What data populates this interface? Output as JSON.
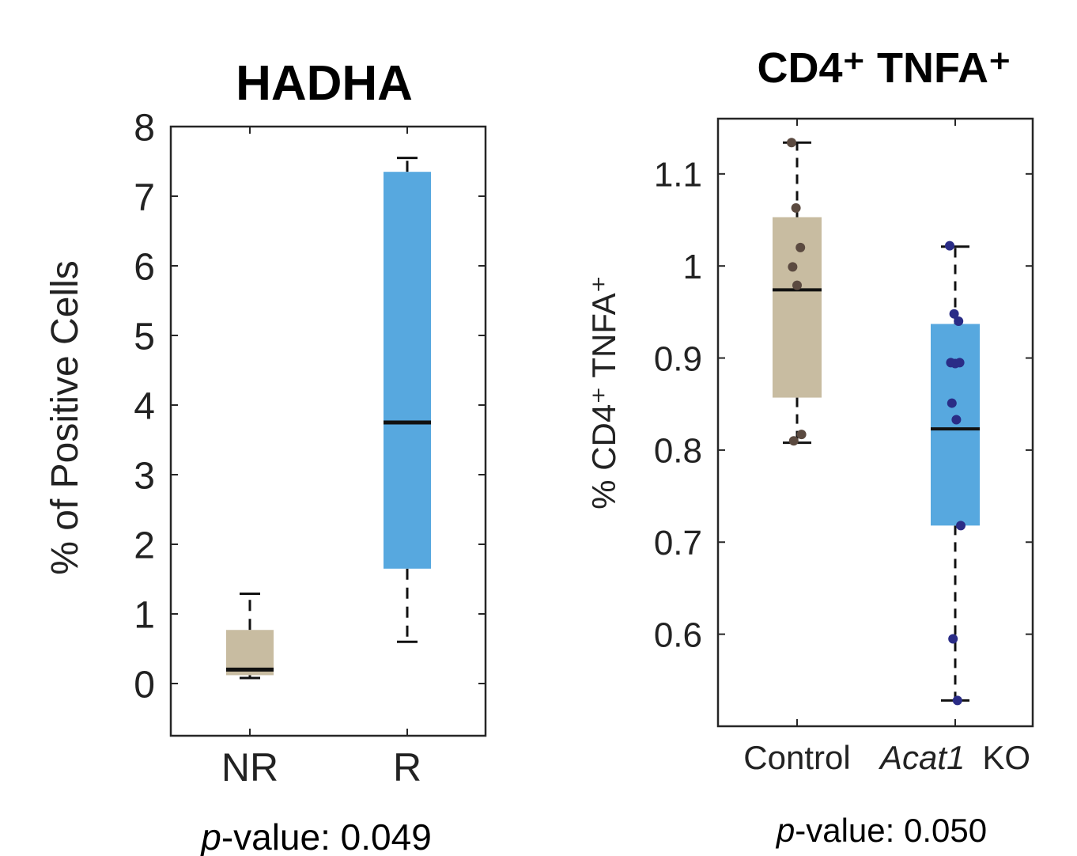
{
  "chart_data": [
    {
      "type": "box",
      "title": "HADHA",
      "ylabel": "% of Positive Cells",
      "ylim": [
        -0.75,
        8
      ],
      "yticks": [
        "0",
        "1",
        "2",
        "3",
        "4",
        "5",
        "6",
        "7",
        "8"
      ],
      "categories": [
        "NR",
        "R"
      ],
      "boxes": [
        {
          "category": "NR",
          "whisker_low": 0.08,
          "q1": 0.12,
          "median": 0.2,
          "q3": 0.77,
          "whisker_high": 1.29,
          "color": "#c8bca1"
        },
        {
          "category": "R",
          "whisker_low": 0.6,
          "q1": 1.65,
          "median": 3.75,
          "q3": 7.35,
          "whisker_high": 7.55,
          "color": "#57a8df"
        }
      ],
      "pvalue_label": "-value: 0.049",
      "pvalue_prefix": "p"
    },
    {
      "type": "box",
      "title": "CD4⁺ TNFA⁺",
      "ylabel": "% CD4⁺ TNFA⁺",
      "ylim": [
        0.5,
        1.16
      ],
      "yticks": [
        "0.6",
        "0.7",
        "0.8",
        "0.9",
        "1",
        "1.1"
      ],
      "categories": [
        "Control",
        "Acat1 KO"
      ],
      "category_parts": [
        [
          "Control"
        ],
        [
          "Acat1",
          "KO"
        ]
      ],
      "boxes": [
        {
          "category": "Control",
          "whisker_low": 0.808,
          "q1": 0.857,
          "median": 0.974,
          "q3": 1.053,
          "whisker_high": 1.134,
          "color": "#c8bca1",
          "points": [
            1.134,
            1.063,
            1.02,
            0.999,
            0.979,
            0.817,
            0.81
          ],
          "point_color": "#5b4a40"
        },
        {
          "category": "Acat1 KO",
          "whisker_low": 0.528,
          "q1": 0.718,
          "median": 0.823,
          "q3": 0.937,
          "whisker_high": 1.021,
          "color": "#57a8df",
          "points": [
            1.022,
            0.948,
            0.94,
            0.895,
            0.894,
            0.895,
            0.851,
            0.833,
            0.718,
            0.595,
            0.528
          ],
          "point_color": "#2a2c86"
        }
      ],
      "pvalue_label": "-value: 0.050",
      "pvalue_prefix": "p"
    }
  ]
}
